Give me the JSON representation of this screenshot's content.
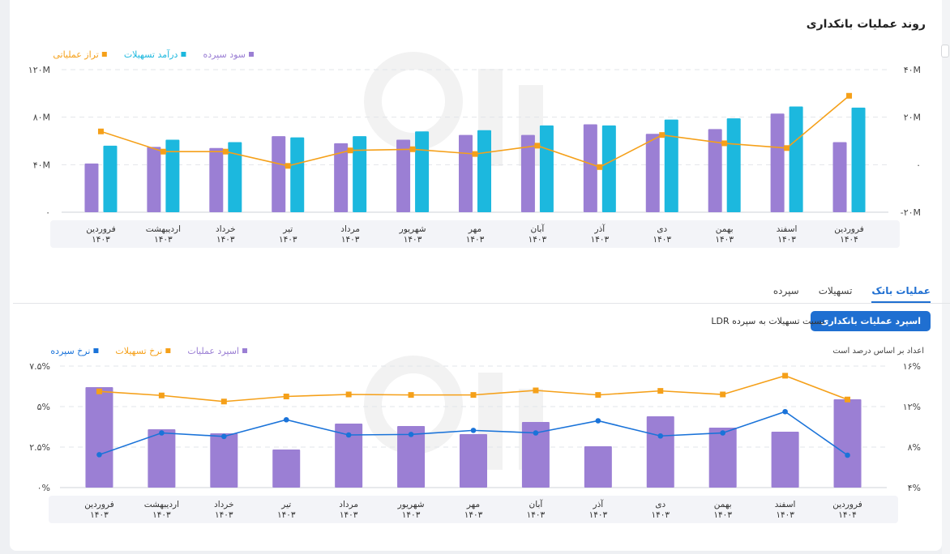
{
  "header": {
    "title": "روند عملیات بانکداری"
  },
  "tabs": [
    {
      "label": "سپرده",
      "active": false
    },
    {
      "label": "تسهیلات",
      "active": false
    },
    {
      "label": "عملیات بانک",
      "active": true
    }
  ],
  "controls": {
    "primary_button": "اسپرد عملیات بانکداری",
    "secondary_option": "نسبت تسهیلات به سپرده LDR",
    "note": "اعداد بر اساس درصد است"
  },
  "colors": {
    "purple": "#9b7fd4",
    "cyan": "#1cb8de",
    "orange": "#f5a019",
    "blue": "#1a73d9"
  },
  "chart_data": [
    {
      "type": "bar",
      "categories": [
        [
          "فروردین",
          "۱۴۰۳"
        ],
        [
          "اردیبهشت",
          "۱۴۰۳"
        ],
        [
          "خرداد",
          "۱۴۰۳"
        ],
        [
          "تیر",
          "۱۴۰۳"
        ],
        [
          "مرداد",
          "۱۴۰۳"
        ],
        [
          "شهریور",
          "۱۴۰۳"
        ],
        [
          "مهر",
          "۱۴۰۳"
        ],
        [
          "آبان",
          "۱۴۰۳"
        ],
        [
          "آذر",
          "۱۴۰۳"
        ],
        [
          "دی",
          "۱۴۰۳"
        ],
        [
          "بهمن",
          "۱۴۰۳"
        ],
        [
          "اسفند",
          "۱۴۰۳"
        ],
        [
          "فروردین",
          "۱۴۰۴"
        ]
      ],
      "series": [
        {
          "name": "سود سپرده",
          "kind": "bar",
          "axis": "left",
          "color": "#9b7fd4",
          "values": [
            41,
            55,
            54,
            64,
            58,
            61,
            65,
            65,
            74,
            66,
            70,
            83,
            59
          ]
        },
        {
          "name": "درآمد تسهیلات",
          "kind": "bar",
          "axis": "left",
          "color": "#1cb8de",
          "values": [
            56,
            61,
            59,
            63,
            64,
            68,
            69,
            73,
            73,
            78,
            79,
            89,
            88
          ]
        },
        {
          "name": "تراز عملیاتی",
          "kind": "line",
          "axis": "right",
          "color": "#f5a019",
          "values": [
            14,
            5.5,
            5.5,
            -0.5,
            6,
            6.5,
            4.5,
            8,
            -1,
            12.5,
            9,
            7,
            29
          ]
        }
      ],
      "left_axis": {
        "ticks": [
          "۰",
          "۴۰M",
          "۸۰M",
          "۱۲۰M"
        ],
        "range": [
          0,
          120
        ]
      },
      "right_axis": {
        "ticks": [
          "-۲۰M",
          "۰",
          "۲۰M",
          "۴۰M"
        ],
        "range": [
          -20,
          40
        ]
      },
      "grid": true,
      "legend": "top-right"
    },
    {
      "type": "bar",
      "categories": [
        [
          "فروردین",
          "۱۴۰۳"
        ],
        [
          "اردیبهشت",
          "۱۴۰۳"
        ],
        [
          "خرداد",
          "۱۴۰۳"
        ],
        [
          "تیر",
          "۱۴۰۳"
        ],
        [
          "مرداد",
          "۱۴۰۳"
        ],
        [
          "شهریور",
          "۱۴۰۳"
        ],
        [
          "مهر",
          "۱۴۰۳"
        ],
        [
          "آبان",
          "۱۴۰۳"
        ],
        [
          "آذر",
          "۱۴۰۳"
        ],
        [
          "دی",
          "۱۴۰۳"
        ],
        [
          "بهمن",
          "۱۴۰۳"
        ],
        [
          "اسفند",
          "۱۴۰۳"
        ],
        [
          "فروردین",
          "۱۴۰۴"
        ]
      ],
      "series": [
        {
          "name": "اسپرد عملیات",
          "kind": "bar",
          "axis": "left",
          "color": "#9b7fd4",
          "values": [
            6.2,
            3.6,
            3.35,
            2.35,
            3.95,
            3.8,
            3.3,
            4.05,
            2.55,
            4.4,
            3.7,
            3.45,
            5.45
          ]
        },
        {
          "name": "نرخ تسهیلات",
          "kind": "line",
          "axis": "right",
          "color": "#f5a019",
          "values": [
            13.5,
            13.1,
            12.5,
            13,
            13.2,
            13.15,
            13.15,
            13.6,
            13.15,
            13.55,
            13.2,
            15.05,
            12.7
          ]
        },
        {
          "name": "نرخ سپرده",
          "kind": "line",
          "axis": "right",
          "color": "#1a73d9",
          "values": [
            7.25,
            9.4,
            9.05,
            10.7,
            9.2,
            9.25,
            9.65,
            9.4,
            10.6,
            9.1,
            9.4,
            11.5,
            7.2
          ]
        }
      ],
      "left_axis": {
        "ticks": [
          "۰%",
          "۲.۵%",
          "۵%",
          "۷.۵%"
        ],
        "range": [
          0,
          7.5
        ]
      },
      "right_axis": {
        "ticks": [
          "۴%",
          "۸%",
          "۱۲%",
          "۱۶%"
        ],
        "range": [
          4,
          16
        ]
      },
      "grid": true,
      "legend": "top-right"
    }
  ]
}
